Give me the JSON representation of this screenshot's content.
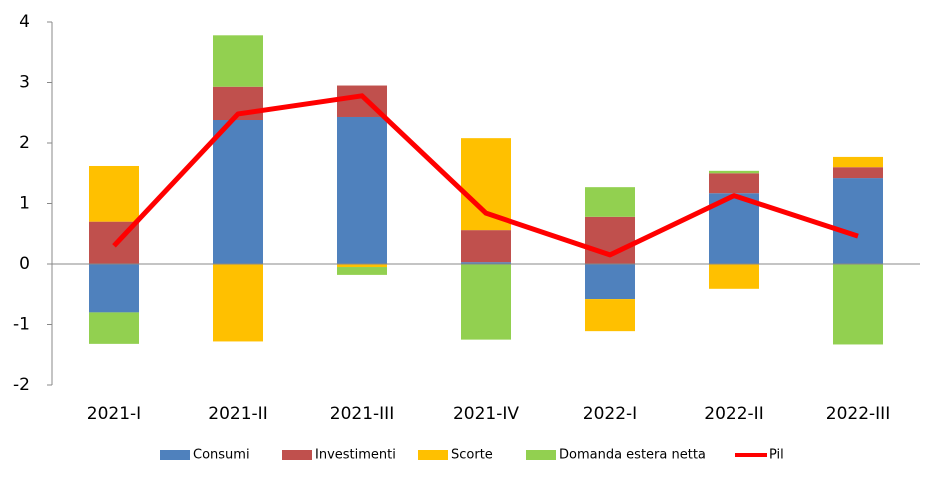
{
  "chart_data": {
    "type": "bar",
    "stacked": true,
    "categories": [
      "2021-I",
      "2021-II",
      "2021-III",
      "2021-IV",
      "2022-I",
      "2022-II",
      "2022-III"
    ],
    "series": [
      {
        "name": "Consumi",
        "color": "#4f81bd",
        "values": [
          -0.8,
          2.38,
          2.43,
          0.03,
          -0.58,
          1.17,
          1.42
        ]
      },
      {
        "name": "Investimenti",
        "color": "#c0504d",
        "values": [
          0.7,
          0.55,
          0.52,
          0.53,
          0.78,
          0.33,
          0.18
        ]
      },
      {
        "name": "Scorte",
        "color": "#ffc000",
        "values": [
          0.92,
          -1.28,
          -0.05,
          1.52,
          -0.53,
          -0.41,
          0.17
        ]
      },
      {
        "name": "Domanda estera netta",
        "color": "#92d050",
        "values": [
          -0.52,
          0.85,
          -0.13,
          -1.25,
          0.49,
          0.04,
          -1.33
        ]
      },
      {
        "name": "Pil",
        "color": "#ff0000",
        "type": "line",
        "values": [
          0.3,
          2.48,
          2.78,
          0.84,
          0.15,
          1.13,
          0.46
        ]
      }
    ],
    "ylim": [
      -2,
      4
    ],
    "yticks": [
      -2,
      -1,
      0,
      1,
      2,
      3,
      4
    ],
    "grid": false,
    "legend": "bottom"
  }
}
